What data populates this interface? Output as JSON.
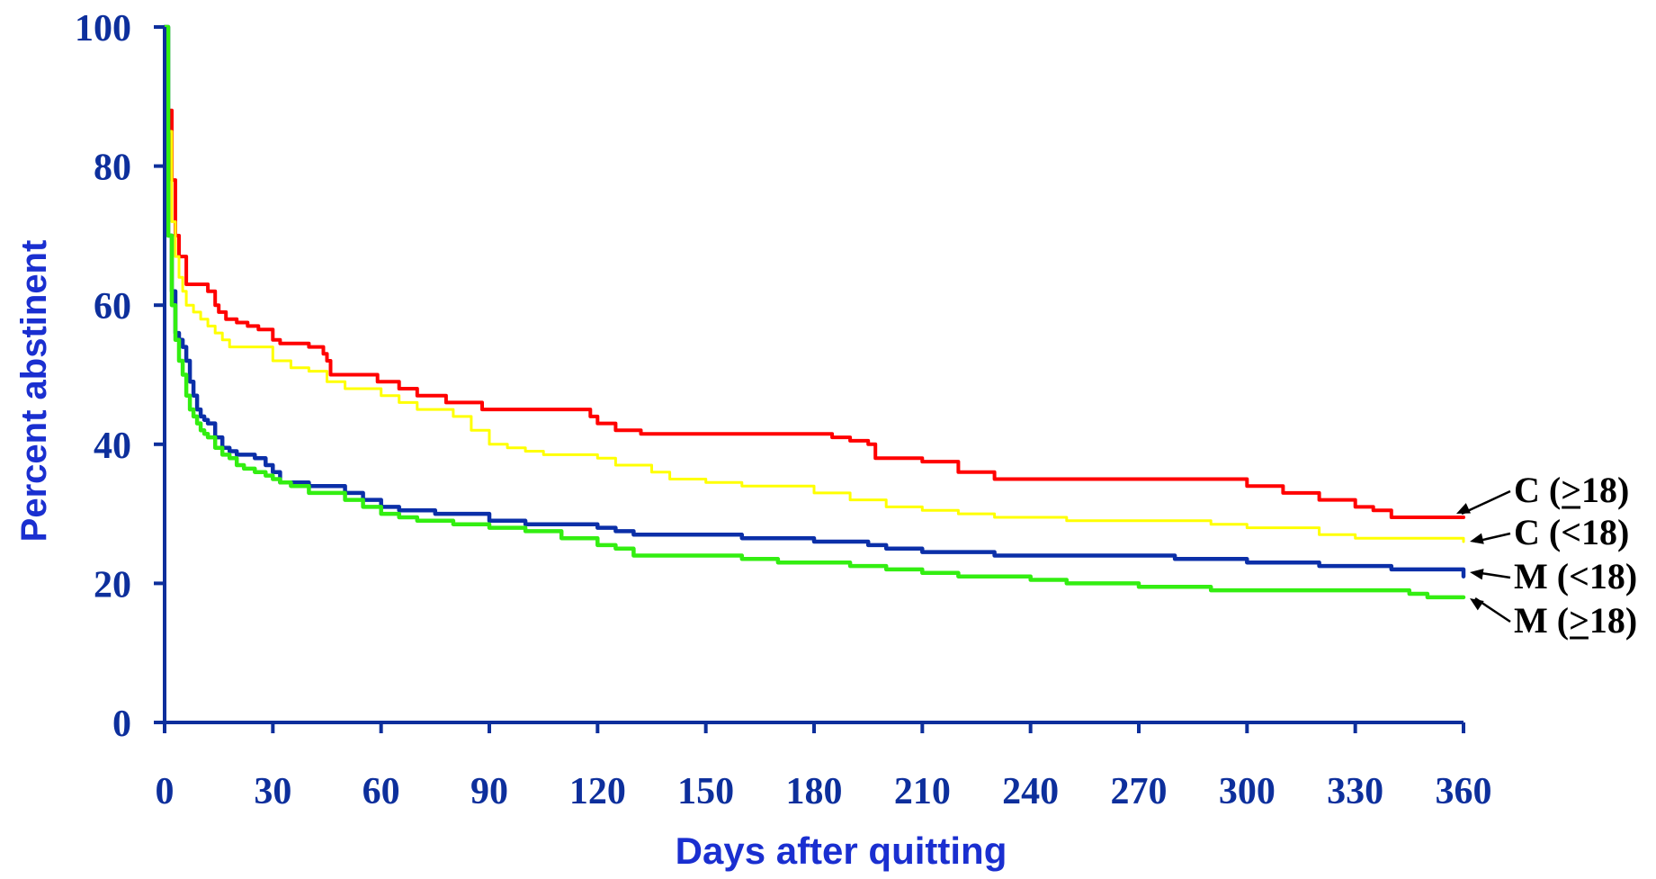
{
  "chart_data": {
    "type": "line",
    "xlabel": "Days after quitting",
    "ylabel": "Percent abstinent",
    "xlim": [
      0,
      360
    ],
    "ylim": [
      0,
      100
    ],
    "xticks": [
      0,
      30,
      60,
      90,
      120,
      150,
      180,
      210,
      240,
      270,
      300,
      330,
      360
    ],
    "yticks": [
      0,
      20,
      40,
      60,
      80,
      100
    ],
    "grid": false,
    "colors": {
      "axis": "#0d2f9c",
      "tick_text": "#0d2f9c",
      "axis_title": "#1a2fd0"
    },
    "series": [
      {
        "name": "C (>18)",
        "label_text": "C (>18)",
        "underline_char": ">",
        "color": "#ff0000",
        "stroke": 4,
        "x": [
          0,
          1,
          2,
          3,
          4,
          5,
          6,
          8,
          10,
          12,
          14,
          15,
          17,
          20,
          23,
          26,
          30,
          32,
          36,
          38,
          40,
          42,
          44,
          45,
          46,
          50,
          58,
          59,
          65,
          70,
          78,
          80,
          88,
          90,
          100,
          115,
          118,
          120,
          125,
          128,
          132,
          140,
          150,
          160,
          170,
          180,
          185,
          190,
          195,
          197,
          210,
          220,
          230,
          240,
          260,
          290,
          300,
          305,
          310,
          315,
          320,
          330,
          335,
          340,
          350,
          360
        ],
        "y": [
          100,
          88,
          78,
          70,
          67,
          67,
          63,
          63,
          63,
          62,
          60,
          59,
          58,
          57.5,
          57,
          56.5,
          55,
          54.5,
          54.5,
          54.5,
          54,
          54,
          53,
          52,
          50,
          50,
          50,
          49,
          48,
          47,
          46,
          46,
          45,
          45,
          45,
          45,
          44,
          43,
          42,
          42,
          41.5,
          41.5,
          41.5,
          41.5,
          41.5,
          41.5,
          41,
          40.5,
          40,
          38,
          37.5,
          36,
          35,
          35,
          35,
          35,
          34,
          34,
          33,
          33,
          32,
          31,
          30.5,
          29.5,
          29.5,
          29.5
        ]
      },
      {
        "name": "C (<18)",
        "label_text": "C (<18)",
        "underline_char": "",
        "color": "#ffff00",
        "stroke": 3,
        "x": [
          0,
          1,
          2,
          3,
          4,
          5,
          6,
          8,
          10,
          12,
          14,
          16,
          18,
          20,
          25,
          30,
          35,
          40,
          45,
          50,
          55,
          60,
          65,
          70,
          75,
          80,
          85,
          90,
          95,
          100,
          105,
          110,
          120,
          125,
          130,
          135,
          140,
          145,
          150,
          160,
          170,
          180,
          190,
          200,
          210,
          220,
          230,
          240,
          250,
          260,
          270,
          280,
          290,
          300,
          310,
          320,
          330,
          340,
          350,
          360
        ],
        "y": [
          100,
          85,
          72,
          67,
          64,
          62,
          60,
          59,
          58,
          57,
          56,
          55,
          54,
          54,
          54,
          52,
          51,
          50.5,
          49,
          48,
          48,
          47,
          46,
          45,
          45,
          44,
          42,
          40,
          39.5,
          39,
          38.5,
          38.5,
          38,
          37,
          37,
          36,
          35,
          35,
          34.5,
          34,
          34,
          33,
          32,
          31,
          30.5,
          30,
          29.5,
          29.5,
          29,
          29,
          29,
          29,
          28.5,
          28,
          28,
          27,
          26.5,
          26.5,
          26.5,
          26
        ]
      },
      {
        "name": "M (<18)",
        "label_text": "M (<18)",
        "underline_char": "",
        "color": "#0b2fa8",
        "stroke": 4.5,
        "x": [
          0,
          1,
          2,
          3,
          4,
          5,
          6,
          7,
          8,
          9,
          10,
          11,
          12,
          14,
          16,
          18,
          20,
          22,
          25,
          28,
          30,
          32,
          35,
          40,
          45,
          50,
          55,
          60,
          65,
          70,
          75,
          80,
          85,
          90,
          95,
          100,
          110,
          120,
          125,
          130,
          140,
          150,
          160,
          170,
          180,
          190,
          195,
          200,
          210,
          220,
          230,
          240,
          250,
          270,
          280,
          290,
          300,
          310,
          320,
          330,
          340,
          350,
          360
        ],
        "y": [
          100,
          70,
          62,
          56,
          55,
          54,
          52,
          49,
          47,
          45,
          44,
          43.5,
          43,
          41,
          39.5,
          39,
          38.5,
          38.5,
          38,
          37,
          36,
          34.5,
          34.5,
          34,
          34,
          33,
          32,
          31,
          30.5,
          30.5,
          30,
          30,
          30,
          29,
          29,
          28.5,
          28.5,
          28,
          27.5,
          27,
          27,
          27,
          26.5,
          26.5,
          26,
          26,
          25.5,
          25,
          24.5,
          24.5,
          24,
          24,
          24,
          24,
          23.5,
          23.5,
          23,
          23,
          22.5,
          22.5,
          22,
          22,
          21
        ]
      },
      {
        "name": "M (>18)",
        "label_text": "M (>18)",
        "underline_char": ">",
        "color": "#33ee11",
        "stroke": 4.5,
        "x": [
          0,
          1,
          2,
          3,
          4,
          5,
          6,
          7,
          8,
          9,
          10,
          11,
          12,
          14,
          16,
          18,
          20,
          22,
          25,
          28,
          30,
          32,
          35,
          40,
          45,
          50,
          55,
          60,
          65,
          70,
          75,
          80,
          85,
          90,
          100,
          110,
          120,
          125,
          130,
          140,
          150,
          160,
          170,
          180,
          190,
          200,
          210,
          220,
          230,
          240,
          250,
          260,
          270,
          280,
          290,
          300,
          310,
          320,
          330,
          340,
          345,
          350,
          360
        ],
        "y": [
          100,
          70,
          60,
          55,
          52,
          50,
          47,
          45,
          44,
          43,
          42,
          41.5,
          41,
          39.5,
          38.5,
          38,
          37,
          36.5,
          36,
          35.5,
          35,
          34.5,
          34,
          33,
          33,
          32,
          31,
          30,
          29.5,
          29,
          29,
          28.5,
          28.5,
          28,
          27.5,
          26.5,
          25.5,
          25,
          24,
          24,
          24,
          23.5,
          23,
          23,
          22.5,
          22,
          21.5,
          21,
          21,
          20.5,
          20,
          20,
          19.5,
          19.5,
          19,
          19,
          19,
          19,
          19,
          19,
          18.5,
          18,
          18
        ]
      }
    ]
  }
}
